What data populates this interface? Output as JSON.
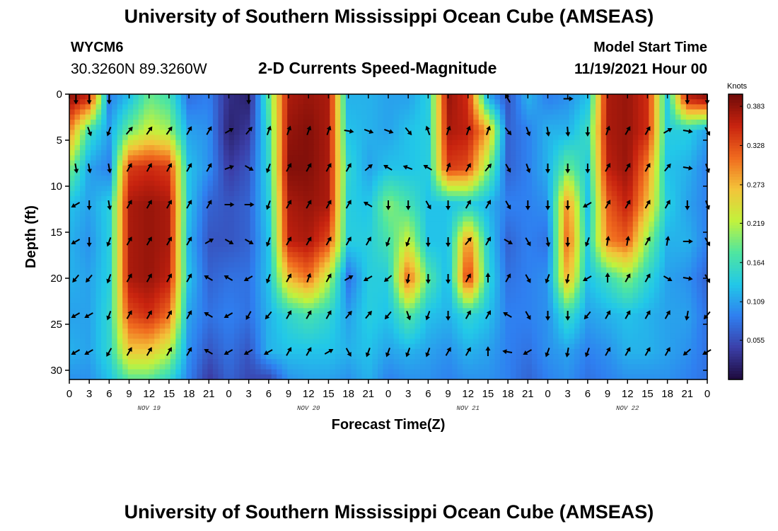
{
  "header": {
    "title": "University of Southern Mississippi Ocean Cube (AMSEAS)",
    "station_id": "WYCM6",
    "coords": "30.3260N  89.3260W",
    "subtitle": "2-D Currents Speed-Magnitude",
    "model_start_label": "Model Start Time",
    "model_start_value": "11/19/2021 Hour 00"
  },
  "footer": {
    "title": "University of Southern Mississippi Ocean Cube (AMSEAS)"
  },
  "colors": {
    "colormap": [
      "#1e0a3c",
      "#3b3fa8",
      "#2f7ff0",
      "#22c8e8",
      "#4fe6a0",
      "#c2f23c",
      "#f3c43a",
      "#f06a1e",
      "#c8230f",
      "#6e0a08"
    ]
  },
  "chart_data": {
    "type": "heatmap",
    "title": "2-D Currents Speed-Magnitude",
    "xlabel": "Forecast Time(Z)",
    "ylabel": "Depth (ft)",
    "x_ticks": [
      "0",
      "3",
      "6",
      "9",
      "12",
      "15",
      "18",
      "21",
      "0",
      "3",
      "6",
      "9",
      "12",
      "15",
      "18",
      "21",
      "0",
      "3",
      "6",
      "9",
      "12",
      "15",
      "18",
      "21",
      "0",
      "3",
      "6",
      "9",
      "12",
      "15",
      "18",
      "21",
      "0"
    ],
    "x_hours": [
      0,
      3,
      6,
      9,
      12,
      15,
      18,
      21,
      24,
      27,
      30,
      33,
      36,
      39,
      42,
      45,
      48,
      51,
      54,
      57,
      60,
      63,
      66,
      69,
      72,
      75,
      78,
      81,
      84,
      87,
      90,
      93,
      96
    ],
    "day_labels": [
      {
        "label": "NOV 19",
        "hour": 12
      },
      {
        "label": "NOV 20",
        "hour": 36
      },
      {
        "label": "NOV 21",
        "hour": 60
      },
      {
        "label": "NOV 22",
        "hour": 84
      }
    ],
    "xlim": [
      0,
      96
    ],
    "y_ticks": [
      "0",
      "5",
      "10",
      "15",
      "20",
      "25",
      "30"
    ],
    "y_values": [
      0,
      5,
      10,
      15,
      20,
      25,
      30
    ],
    "ylim": [
      0,
      31
    ],
    "y_inverted": true,
    "colorbar": {
      "label": "Knots",
      "ticks": [
        "0.383",
        "0.328",
        "0.273",
        "0.219",
        "0.164",
        "0.109",
        "0.055"
      ],
      "tick_values": [
        0.383,
        0.328,
        0.273,
        0.219,
        0.164,
        0.109,
        0.055
      ],
      "range": [
        0,
        0.4
      ]
    },
    "depth_levels": [
      0.5,
      4,
      8,
      12,
      16,
      20,
      24,
      28,
      31
    ],
    "time_hours": [
      0,
      3,
      6,
      9,
      12,
      15,
      18,
      21,
      24,
      27,
      30,
      33,
      36,
      39,
      42,
      45,
      48,
      51,
      54,
      57,
      60,
      63,
      66,
      69,
      72,
      75,
      78,
      81,
      84,
      87,
      90,
      93,
      96
    ],
    "speed_grid": [
      [
        0.38,
        0.35,
        0.09,
        0.13,
        0.19,
        0.17,
        0.08,
        0.09,
        0.03,
        0.02,
        0.18,
        0.37,
        0.38,
        0.37,
        0.12,
        0.12,
        0.11,
        0.11,
        0.14,
        0.38,
        0.35,
        0.12,
        0.06,
        0.12,
        0.09,
        0.1,
        0.13,
        0.37,
        0.38,
        0.35,
        0.14,
        0.36,
        0.38
      ],
      [
        0.3,
        0.16,
        0.11,
        0.19,
        0.23,
        0.21,
        0.11,
        0.1,
        0.02,
        0.04,
        0.16,
        0.38,
        0.39,
        0.37,
        0.13,
        0.12,
        0.11,
        0.13,
        0.14,
        0.37,
        0.36,
        0.28,
        0.07,
        0.09,
        0.12,
        0.12,
        0.16,
        0.37,
        0.38,
        0.35,
        0.14,
        0.14,
        0.11
      ],
      [
        0.2,
        0.11,
        0.09,
        0.34,
        0.35,
        0.34,
        0.13,
        0.1,
        0.04,
        0.06,
        0.15,
        0.39,
        0.39,
        0.37,
        0.15,
        0.11,
        0.13,
        0.13,
        0.14,
        0.34,
        0.33,
        0.2,
        0.07,
        0.09,
        0.12,
        0.19,
        0.14,
        0.36,
        0.38,
        0.3,
        0.13,
        0.12,
        0.09
      ],
      [
        0.13,
        0.11,
        0.14,
        0.37,
        0.38,
        0.37,
        0.13,
        0.07,
        0.06,
        0.07,
        0.14,
        0.37,
        0.38,
        0.37,
        0.14,
        0.13,
        0.2,
        0.17,
        0.13,
        0.13,
        0.14,
        0.12,
        0.09,
        0.09,
        0.1,
        0.3,
        0.13,
        0.32,
        0.36,
        0.27,
        0.14,
        0.11,
        0.09
      ],
      [
        0.12,
        0.1,
        0.14,
        0.37,
        0.38,
        0.37,
        0.12,
        0.06,
        0.06,
        0.07,
        0.13,
        0.36,
        0.37,
        0.33,
        0.14,
        0.14,
        0.17,
        0.23,
        0.13,
        0.13,
        0.3,
        0.14,
        0.07,
        0.09,
        0.08,
        0.32,
        0.14,
        0.3,
        0.32,
        0.2,
        0.12,
        0.12,
        0.09
      ],
      [
        0.12,
        0.11,
        0.14,
        0.37,
        0.38,
        0.36,
        0.13,
        0.07,
        0.08,
        0.08,
        0.13,
        0.27,
        0.31,
        0.22,
        0.08,
        0.14,
        0.14,
        0.32,
        0.18,
        0.12,
        0.35,
        0.15,
        0.08,
        0.09,
        0.1,
        0.28,
        0.13,
        0.16,
        0.2,
        0.15,
        0.11,
        0.1,
        0.07
      ],
      [
        0.11,
        0.11,
        0.15,
        0.33,
        0.35,
        0.31,
        0.11,
        0.08,
        0.09,
        0.08,
        0.12,
        0.15,
        0.17,
        0.15,
        0.11,
        0.14,
        0.13,
        0.18,
        0.13,
        0.12,
        0.15,
        0.13,
        0.09,
        0.09,
        0.1,
        0.16,
        0.11,
        0.12,
        0.13,
        0.12,
        0.11,
        0.11,
        0.08
      ],
      [
        0.12,
        0.11,
        0.15,
        0.26,
        0.26,
        0.22,
        0.1,
        0.06,
        0.08,
        0.06,
        0.12,
        0.13,
        0.13,
        0.13,
        0.12,
        0.13,
        0.11,
        0.12,
        0.11,
        0.1,
        0.12,
        0.11,
        0.09,
        0.08,
        0.1,
        0.11,
        0.09,
        0.1,
        0.12,
        0.12,
        0.11,
        0.1,
        0.08
      ],
      [
        0.1,
        0.1,
        0.13,
        0.18,
        0.18,
        0.15,
        0.09,
        0.04,
        0.07,
        0.05,
        0.05,
        0.1,
        0.11,
        0.11,
        0.1,
        0.12,
        0.09,
        0.1,
        0.1,
        0.09,
        0.1,
        0.1,
        0.09,
        0.07,
        0.09,
        0.1,
        0.08,
        0.09,
        0.1,
        0.1,
        0.1,
        0.09,
        0.08
      ]
    ],
    "arrow_depths": [
      0.5,
      4,
      8,
      12,
      16,
      20,
      24,
      28
    ],
    "arrow_hours": [
      1,
      3,
      6,
      9,
      12,
      15,
      18,
      21,
      24,
      27,
      30,
      33,
      36,
      39,
      42,
      45,
      48,
      51,
      54,
      57,
      60,
      63,
      66,
      69,
      72,
      75,
      78,
      81,
      84,
      87,
      90,
      93,
      96
    ],
    "arrow_dirs_deg": [
      [
        180,
        180,
        180,
        null,
        null,
        null,
        null,
        null,
        null,
        180,
        null,
        null,
        null,
        null,
        null,
        null,
        null,
        null,
        null,
        null,
        null,
        null,
        330,
        null,
        null,
        90,
        null,
        null,
        null,
        null,
        null,
        180,
        180
      ],
      [
        null,
        160,
        200,
        40,
        35,
        35,
        30,
        30,
        60,
        40,
        20,
        20,
        20,
        20,
        100,
        110,
        110,
        140,
        340,
        20,
        20,
        20,
        140,
        160,
        170,
        175,
        180,
        20,
        30,
        30,
        60,
        100,
        150
      ],
      [
        170,
        170,
        170,
        30,
        30,
        30,
        30,
        30,
        70,
        120,
        200,
        30,
        30,
        30,
        30,
        50,
        300,
        290,
        300,
        20,
        30,
        40,
        150,
        160,
        180,
        180,
        180,
        30,
        30,
        30,
        40,
        100,
        160
      ],
      [
        240,
        180,
        170,
        30,
        30,
        30,
        30,
        30,
        90,
        90,
        200,
        30,
        30,
        30,
        30,
        300,
        180,
        180,
        150,
        180,
        30,
        30,
        150,
        180,
        180,
        180,
        240,
        30,
        30,
        30,
        30,
        180,
        160
      ],
      [
        240,
        180,
        200,
        30,
        30,
        30,
        30,
        60,
        120,
        120,
        200,
        30,
        30,
        30,
        30,
        30,
        200,
        200,
        180,
        180,
        40,
        30,
        120,
        150,
        170,
        180,
        200,
        10,
        10,
        30,
        10,
        90,
        150
      ],
      [
        220,
        220,
        200,
        30,
        30,
        30,
        30,
        300,
        300,
        240,
        200,
        30,
        20,
        30,
        60,
        240,
        230,
        190,
        180,
        180,
        30,
        0,
        30,
        150,
        200,
        190,
        240,
        0,
        30,
        30,
        120,
        100,
        150
      ],
      [
        240,
        240,
        200,
        30,
        30,
        30,
        30,
        300,
        240,
        210,
        220,
        30,
        30,
        30,
        40,
        40,
        220,
        160,
        200,
        180,
        30,
        30,
        300,
        150,
        180,
        180,
        220,
        30,
        30,
        30,
        30,
        190,
        220
      ],
      [
        240,
        240,
        210,
        30,
        30,
        30,
        30,
        300,
        240,
        240,
        240,
        30,
        30,
        60,
        150,
        200,
        200,
        200,
        200,
        30,
        30,
        0,
        280,
        240,
        200,
        190,
        200,
        30,
        30,
        30,
        30,
        230,
        240
      ]
    ]
  }
}
